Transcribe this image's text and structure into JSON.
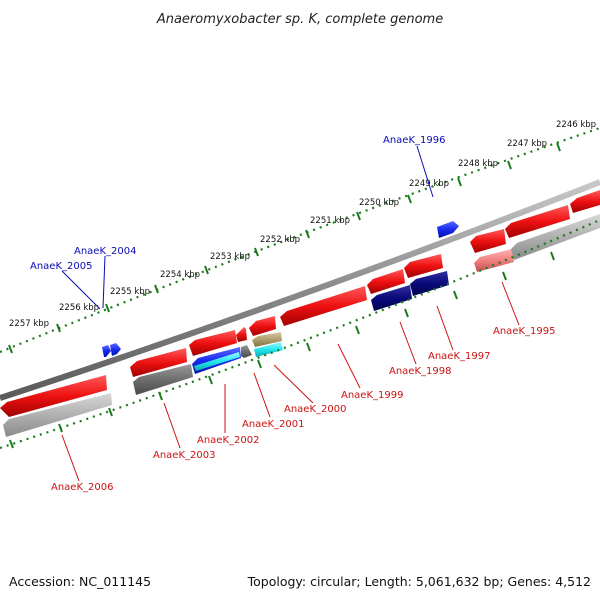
{
  "title": "Anaeromyxobacter sp. K, complete genome",
  "footer": {
    "accession": "Accession: NC_011145",
    "summary": "Topology: circular; Length: 5,061,632 bp; Genes: 4,512"
  },
  "kbp_labels": [
    "2246 kbp",
    "2247 kbp",
    "2248 kbp",
    "2249 kbp",
    "2250 kbp",
    "2251 kbp",
    "2252 kbp",
    "2253 kbp",
    "2254 kbp",
    "2255 kbp",
    "2256 kbp",
    "2257 kbp"
  ],
  "gene_labels": {
    "forward": [
      "AnaeK_1996",
      "AnaeK_2004",
      "AnaeK_2005"
    ],
    "reverse": [
      "AnaeK_1995",
      "AnaeK_1997",
      "AnaeK_1998",
      "AnaeK_1999",
      "AnaeK_2000",
      "AnaeK_2001",
      "AnaeK_2002",
      "AnaeK_2003",
      "AnaeK_2006"
    ]
  },
  "colors": {
    "forward_label": "#0b0bb5",
    "reverse_label": "#cc1111",
    "tick": "#1a7a1a",
    "backbone": "#888888",
    "red_gene": "#e81010",
    "gray_gene": "#a8a8a8",
    "navy_gene": "#0a0a7a",
    "blue_gene": "#1a2aee",
    "cyan_gene": "#22e6ee",
    "tan_gene": "#b0a070",
    "pink_gene": "#f08080"
  }
}
